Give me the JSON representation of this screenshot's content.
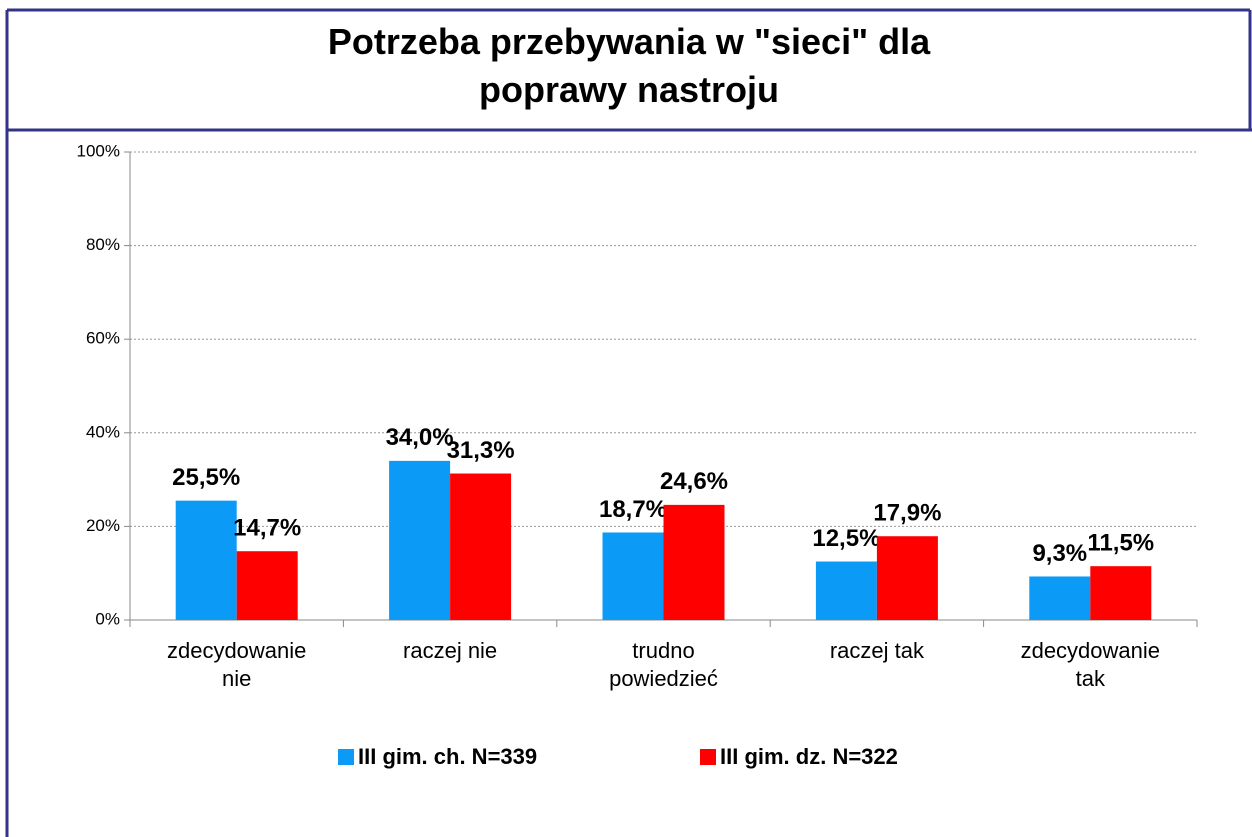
{
  "chart_data": {
    "type": "bar",
    "title": "Potrzeba przebywania w \"sieci\" dla poprawy nastroju",
    "categories": [
      "zdecydowanie nie",
      "raczej nie",
      "trudno powiedzieć",
      "raczej tak",
      "zdecydowanie tak"
    ],
    "series": [
      {
        "name": "III gim. ch. N=339",
        "color": "#0b9bf7",
        "values": [
          25.5,
          34.0,
          18.7,
          12.5,
          9.3
        ],
        "value_labels": [
          "25,5%",
          "34,0%",
          "18,7%",
          "12,5%",
          "9,3%"
        ]
      },
      {
        "name": "III gim. dz. N=322",
        "color": "#ff0000",
        "values": [
          14.7,
          31.3,
          24.6,
          17.9,
          11.5
        ],
        "value_labels": [
          "14,7%",
          "31,3%",
          "24,6%",
          "17,9%",
          "11,5%"
        ]
      }
    ],
    "ylim": [
      0,
      100
    ],
    "yticks": [
      {
        "value": 0,
        "label": "0%"
      },
      {
        "value": 20,
        "label": "20%"
      },
      {
        "value": 40,
        "label": "40%"
      },
      {
        "value": 60,
        "label": "60%"
      },
      {
        "value": 80,
        "label": "80%"
      },
      {
        "value": 100,
        "label": "100%"
      }
    ],
    "grid": true,
    "legend": "bottom"
  }
}
